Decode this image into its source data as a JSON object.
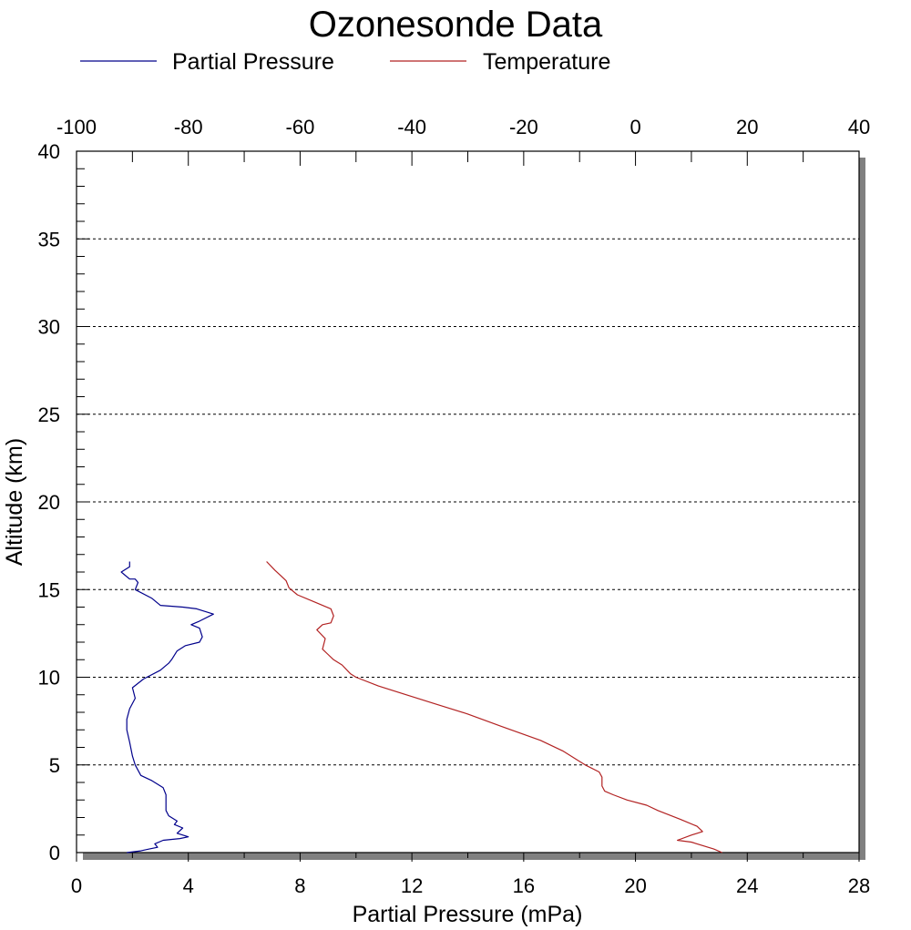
{
  "chart_data": {
    "type": "line",
    "title": "Ozonesonde Data",
    "xlabel": "Partial Pressure (mPa)",
    "ylabel": "Altitude (km)",
    "xlim": [
      0,
      28
    ],
    "x2lim": [
      -100,
      40
    ],
    "ylim": [
      0,
      40
    ],
    "x_ticks": [
      "0",
      "4",
      "8",
      "12",
      "16",
      "20",
      "24",
      "28"
    ],
    "x2_ticks": [
      "-100",
      "-80",
      "-60",
      "-40",
      "-20",
      "0",
      "20",
      "40"
    ],
    "y_ticks": [
      "0",
      "5",
      "10",
      "15",
      "20",
      "25",
      "30",
      "35",
      "40"
    ],
    "grid": "horizontal dashed",
    "legend_position": "top",
    "series": [
      {
        "name": "Partial Pressure",
        "axis": "bottom",
        "color": "#00008b",
        "points": [
          [
            1.8,
            0.0
          ],
          [
            2.3,
            0.1
          ],
          [
            2.6,
            0.2
          ],
          [
            2.9,
            0.3
          ],
          [
            2.8,
            0.5
          ],
          [
            3.1,
            0.7
          ],
          [
            3.7,
            0.8
          ],
          [
            4.0,
            0.9
          ],
          [
            3.6,
            1.1
          ],
          [
            3.8,
            1.4
          ],
          [
            3.5,
            1.6
          ],
          [
            3.6,
            1.8
          ],
          [
            3.3,
            2.1
          ],
          [
            3.2,
            2.4
          ],
          [
            3.2,
            2.8
          ],
          [
            3.2,
            3.3
          ],
          [
            3.1,
            3.7
          ],
          [
            2.7,
            4.1
          ],
          [
            2.3,
            4.4
          ],
          [
            2.1,
            5.0
          ],
          [
            2.0,
            5.5
          ],
          [
            1.9,
            6.3
          ],
          [
            1.8,
            7.0
          ],
          [
            1.8,
            7.6
          ],
          [
            1.9,
            8.2
          ],
          [
            2.1,
            8.8
          ],
          [
            2.0,
            9.4
          ],
          [
            2.4,
            9.9
          ],
          [
            3.0,
            10.4
          ],
          [
            3.3,
            10.8
          ],
          [
            3.4,
            11.0
          ],
          [
            3.6,
            11.5
          ],
          [
            3.9,
            11.8
          ],
          [
            4.4,
            12.0
          ],
          [
            4.5,
            12.3
          ],
          [
            4.4,
            12.8
          ],
          [
            4.1,
            13.0
          ],
          [
            4.4,
            13.2
          ],
          [
            4.9,
            13.6
          ],
          [
            4.3,
            13.9
          ],
          [
            3.8,
            14.0
          ],
          [
            3.0,
            14.1
          ],
          [
            2.7,
            14.5
          ],
          [
            2.1,
            15.0
          ],
          [
            2.2,
            15.4
          ],
          [
            2.1,
            15.6
          ],
          [
            1.9,
            15.6
          ],
          [
            1.6,
            16.0
          ],
          [
            1.9,
            16.3
          ],
          [
            1.9,
            16.6
          ]
        ]
      },
      {
        "name": "Temperature",
        "axis": "top",
        "color": "#b22222",
        "points": [
          [
            15.5,
            0.0
          ],
          [
            14.0,
            0.2
          ],
          [
            10.0,
            0.6
          ],
          [
            7.5,
            0.7
          ],
          [
            10.0,
            1.0
          ],
          [
            12.0,
            1.2
          ],
          [
            11.0,
            1.5
          ],
          [
            8.0,
            1.9
          ],
          [
            4.0,
            2.4
          ],
          [
            2.0,
            2.7
          ],
          [
            -1.5,
            3.0
          ],
          [
            -4.0,
            3.3
          ],
          [
            -5.5,
            3.5
          ],
          [
            -6.0,
            3.8
          ],
          [
            -6.0,
            4.0
          ],
          [
            -6.0,
            4.3
          ],
          [
            -6.5,
            4.6
          ],
          [
            -9.0,
            5.0
          ],
          [
            -13.0,
            5.8
          ],
          [
            -17.0,
            6.4
          ],
          [
            -24.0,
            7.2
          ],
          [
            -30.0,
            7.9
          ],
          [
            -36.0,
            8.5
          ],
          [
            -40.0,
            8.9
          ],
          [
            -46.0,
            9.5
          ],
          [
            -50.0,
            10.0
          ],
          [
            -51.0,
            10.2
          ],
          [
            -52.5,
            10.7
          ],
          [
            -54.0,
            11.0
          ],
          [
            -55.0,
            11.3
          ],
          [
            -56.0,
            11.6
          ],
          [
            -55.5,
            12.2
          ],
          [
            -57.0,
            12.7
          ],
          [
            -56.0,
            13.0
          ],
          [
            -54.5,
            13.1
          ],
          [
            -54.0,
            13.5
          ],
          [
            -54.5,
            13.9
          ],
          [
            -57.5,
            14.3
          ],
          [
            -60.5,
            14.7
          ],
          [
            -62.0,
            15.1
          ],
          [
            -62.5,
            15.5
          ],
          [
            -63.5,
            15.8
          ],
          [
            -64.5,
            16.1
          ],
          [
            -66.0,
            16.6
          ]
        ]
      }
    ]
  }
}
